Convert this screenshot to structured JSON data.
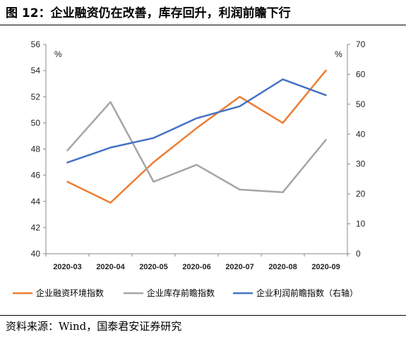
{
  "figure": {
    "title": "图 12：企业融资仍在改善，库存回升，利润前瞻下行",
    "source": "资料来源：Wind，国泰君安证券研究"
  },
  "chart_data": {
    "type": "line",
    "categories": [
      "2020-03",
      "2020-04",
      "2020-05",
      "2020-06",
      "2020-07",
      "2020-08",
      "2020-09"
    ],
    "y_left": {
      "unit": "%",
      "ylim": [
        40,
        56
      ],
      "ticks": [
        40,
        42,
        44,
        46,
        48,
        50,
        52,
        54,
        56
      ]
    },
    "y_right": {
      "unit": "%",
      "ylim": [
        0,
        70
      ],
      "ticks": [
        0,
        10,
        20,
        30,
        40,
        50,
        60,
        70
      ]
    },
    "grid": false,
    "legend_position": "bottom",
    "series": [
      {
        "name": "企业融资环境指数",
        "axis": "left",
        "color": "#ED7D31",
        "values": [
          45.5,
          43.9,
          47.0,
          49.6,
          52.0,
          50.0,
          54.0
        ]
      },
      {
        "name": "企业库存前瞻指数",
        "axis": "left",
        "color": "#A5A5A5",
        "values": [
          47.9,
          51.6,
          45.5,
          46.8,
          44.9,
          44.7,
          48.7
        ]
      },
      {
        "name": "企业利润前瞻指数（右轴）",
        "axis": "right",
        "color": "#4472C4",
        "values": [
          30.5,
          35.5,
          38.7,
          45.3,
          49.3,
          58.3,
          53.0
        ]
      }
    ]
  }
}
